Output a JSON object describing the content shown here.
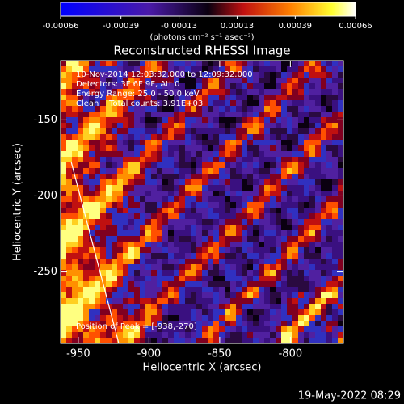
{
  "chart_data": {
    "type": "image",
    "title": "Reconstructed RHESSI Image",
    "colorbar": {
      "clim": [
        -0.00066,
        0.00066
      ],
      "ticks": [
        -0.00066,
        -0.00039,
        -0.00013,
        0.00013,
        0.00039,
        0.00066
      ],
      "label": "(photons cm⁻² s⁻¹ asec⁻²)"
    },
    "x_label": "Heliocentric X (arcsec)",
    "y_label": "Heliocentric Y (arcsec)",
    "xlim": [
      -962.5,
      -762.5
    ],
    "xticks": [
      -950,
      -900,
      -850,
      -800
    ],
    "ylim": [
      -297,
      -111
    ],
    "yticks": [
      -150,
      -200,
      -250
    ],
    "annotations": [
      "10-Nov-2014 12:03:32.000 to 12:09:32.000",
      "Detectors: 3F 6F 9F, Att 0",
      "Energy Range: 25.0 - 50.0 keV",
      "Clean    Total counts: 3.91E+03"
    ],
    "peak_label": "Position of Peak = [-938,-270]",
    "footer": "19-May-2022 08:29"
  }
}
